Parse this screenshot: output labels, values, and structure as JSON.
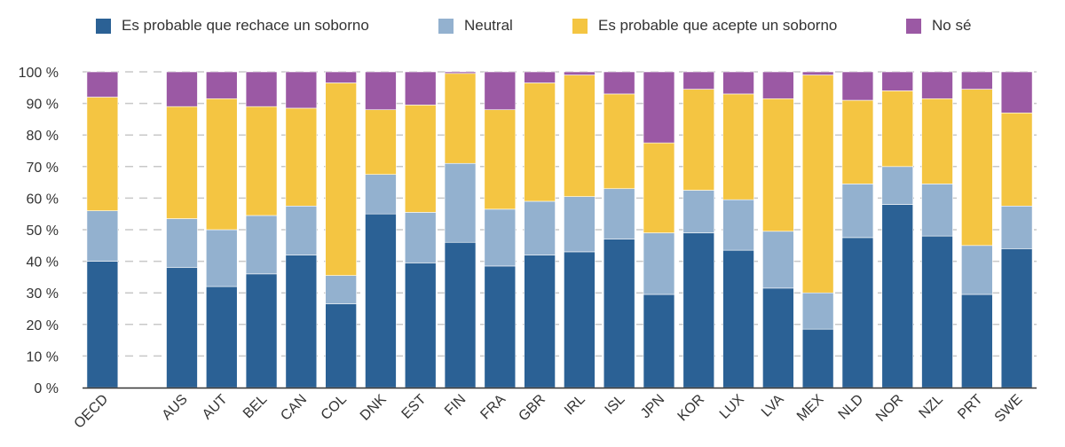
{
  "chart_data": {
    "type": "bar",
    "stacked": true,
    "categories": [
      "OECD",
      "",
      "AUS",
      "AUT",
      "BEL",
      "CAN",
      "COL",
      "DNK",
      "EST",
      "FIN",
      "FRA",
      "GBR",
      "IRL",
      "ISL",
      "JPN",
      "KOR",
      "LUX",
      "LVA",
      "MEX",
      "NLD",
      "NOR",
      "NZL",
      "PRT",
      "SWE"
    ],
    "series": [
      {
        "name": "Es probable que rechace un soborno",
        "color": "#2b6195",
        "values": [
          40,
          0,
          38,
          32,
          36,
          42,
          26.5,
          55,
          39.5,
          46,
          38.5,
          42,
          43,
          47,
          29.5,
          49,
          43.5,
          31.5,
          18.5,
          47.5,
          58,
          48,
          29.5,
          44
        ]
      },
      {
        "name": "Neutral",
        "color": "#93b1cf",
        "values": [
          16,
          0,
          15.5,
          18,
          18.5,
          15.5,
          9,
          12.5,
          16,
          25,
          18,
          17,
          17.5,
          16,
          19.5,
          13.5,
          16,
          18,
          11.5,
          17,
          12,
          16.5,
          15.5,
          13.5
        ]
      },
      {
        "name": "Es probable que acepte un soborno",
        "color": "#f4c542",
        "values": [
          36,
          0,
          35.5,
          41.5,
          34.5,
          31,
          61,
          20.5,
          34,
          28.5,
          31.5,
          37.5,
          38.5,
          30,
          28.5,
          32,
          33.5,
          42,
          69,
          26.5,
          24,
          27,
          49.5,
          29.5
        ]
      },
      {
        "name": "No sé",
        "color": "#9b59a4",
        "values": [
          8,
          0,
          11,
          8.5,
          11,
          11.5,
          3.5,
          12,
          10.5,
          0.5,
          12,
          3.5,
          1,
          7,
          22.5,
          5.5,
          7,
          8.5,
          1,
          9,
          6,
          8.5,
          5.5,
          13
        ]
      }
    ],
    "y_ticks": [
      "0 %",
      "10 %",
      "20 %",
      "30 %",
      "40 %",
      "50 %",
      "60 %",
      "70 %",
      "80 %",
      "90 %",
      "100 %"
    ],
    "ylim": [
      0,
      100
    ],
    "grid": true,
    "legend_position": "top"
  }
}
